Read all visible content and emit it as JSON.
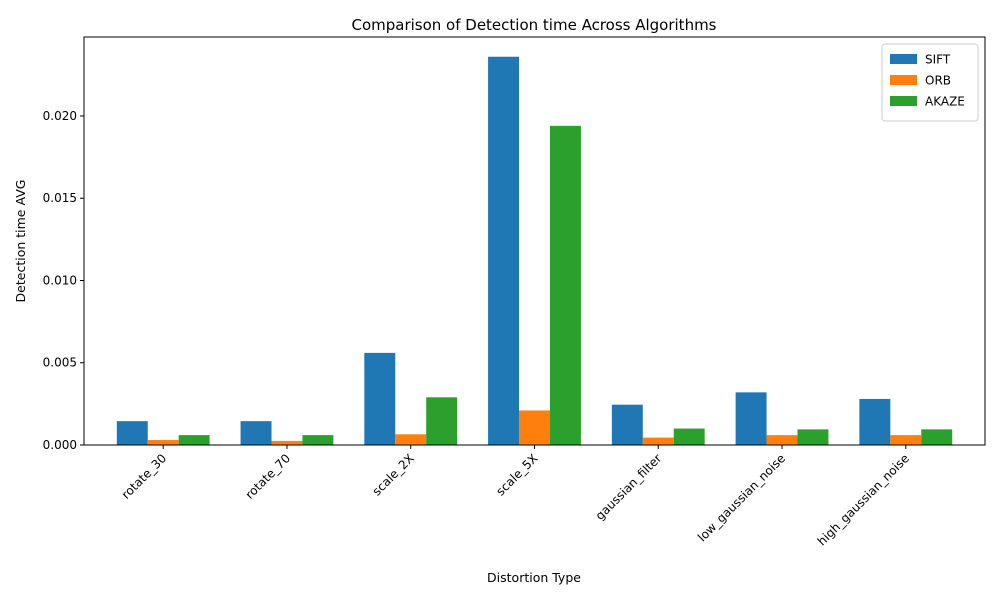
{
  "chart_data": {
    "type": "bar",
    "title": "Comparison of Detection time Across Algorithms",
    "xlabel": "Distortion Type",
    "ylabel": "Detection time AVG",
    "categories": [
      "rotate_30",
      "rotate_70",
      "scale_2X",
      "scale_5X",
      "gaussian_filter",
      "low_gaussian_noise",
      "high_gaussian_noise"
    ],
    "series": [
      {
        "name": "SIFT",
        "color": "#1f77b4",
        "values": [
          0.00145,
          0.00145,
          0.0056,
          0.0236,
          0.00245,
          0.0032,
          0.0028
        ]
      },
      {
        "name": "ORB",
        "color": "#ff7f0e",
        "values": [
          0.0003,
          0.00025,
          0.00065,
          0.0021,
          0.00045,
          0.0006,
          0.0006
        ]
      },
      {
        "name": "AKAZE",
        "color": "#2ca02c",
        "values": [
          0.0006,
          0.0006,
          0.0029,
          0.0194,
          0.001,
          0.00095,
          0.00095
        ]
      }
    ],
    "ylim": [
      0,
      0.0248
    ],
    "yticks": [
      0.0,
      0.005,
      0.01,
      0.015,
      0.02
    ],
    "ytick_labels": [
      "0.000",
      "0.005",
      "0.010",
      "0.015",
      "0.020"
    ],
    "grid": false,
    "legend_position": "top-right"
  }
}
